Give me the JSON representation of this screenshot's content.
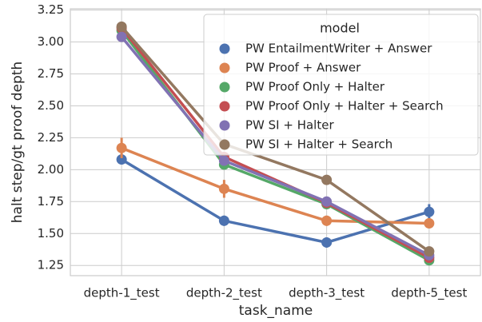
{
  "chart_data": {
    "type": "pointplot",
    "x_label": "task_name",
    "y_label": "halt step/gt proof depth",
    "categories": [
      "depth-1_test",
      "depth-2_test",
      "depth-3_test",
      "depth-5_test"
    ],
    "ylim": [
      1.17,
      3.26
    ],
    "yticks": [
      1.25,
      1.5,
      1.75,
      2.0,
      2.25,
      2.5,
      2.75,
      3.0,
      3.25
    ],
    "ytick_labels": [
      "1.25",
      "1.50",
      "1.75",
      "2.00",
      "2.25",
      "2.50",
      "2.75",
      "3.00",
      "3.25"
    ],
    "grid": true,
    "legend_title": "model",
    "legend_position": "upper right",
    "series": [
      {
        "name": "PW EntailmentWriter + Answer",
        "color": "#4c72b0",
        "values": [
          2.08,
          1.6,
          1.43,
          1.67
        ],
        "errors": [
          0.04,
          0.04,
          0.04,
          0.06
        ]
      },
      {
        "name": "PW Proof + Answer",
        "color": "#dd8452",
        "values": [
          2.17,
          1.85,
          1.6,
          1.58
        ],
        "errors": [
          0.08,
          0.07,
          0.04,
          0.04
        ]
      },
      {
        "name": "PW Proof Only + Halter",
        "color": "#55a868",
        "values": [
          3.09,
          2.04,
          1.73,
          1.29
        ],
        "errors": [
          0.03,
          0.02,
          0.02,
          0.02
        ]
      },
      {
        "name": "PW Proof Only + Halter + Search",
        "color": "#c44e52",
        "values": [
          3.11,
          2.1,
          1.74,
          1.31
        ],
        "errors": [
          0.03,
          0.02,
          0.02,
          0.02
        ]
      },
      {
        "name": "PW SI + Halter",
        "color": "#8172b3",
        "values": [
          3.04,
          2.07,
          1.75,
          1.33
        ],
        "errors": [
          0.03,
          0.03,
          0.02,
          0.02
        ]
      },
      {
        "name": "PW SI + Halter + Search",
        "color": "#937860",
        "values": [
          3.12,
          2.2,
          1.92,
          1.36
        ],
        "errors": [
          0.03,
          0.03,
          0.03,
          0.02
        ]
      }
    ]
  }
}
